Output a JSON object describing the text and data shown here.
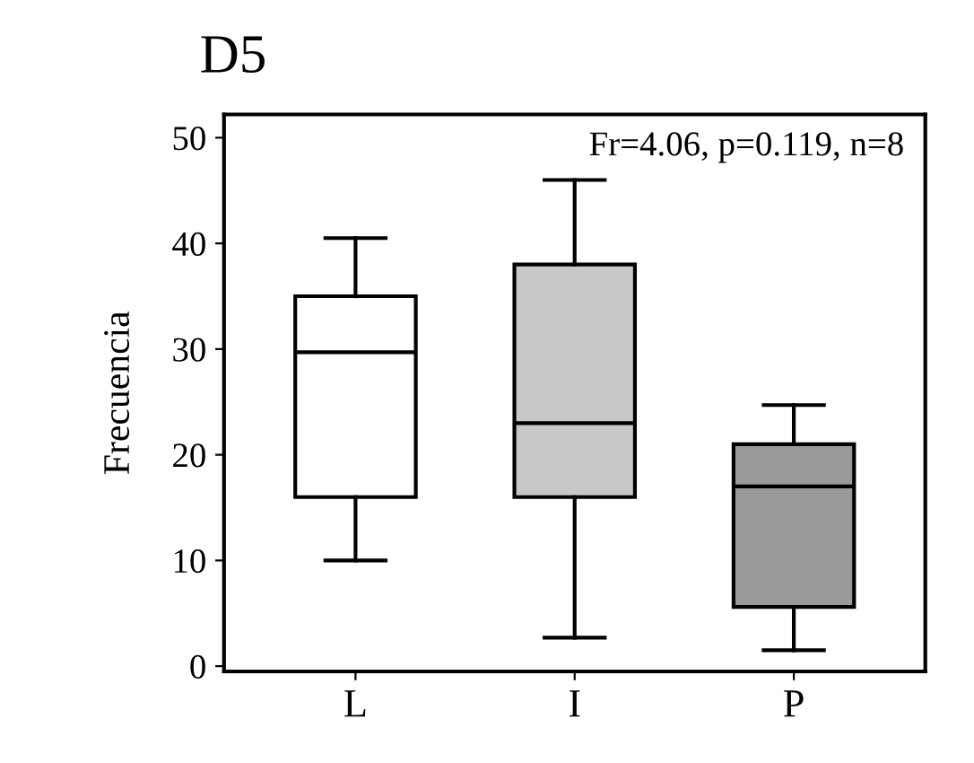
{
  "chart_data": {
    "type": "box",
    "title": "D5",
    "ylabel": "Frecuencia",
    "categories": [
      "L",
      "I",
      "P"
    ],
    "boxes": [
      {
        "low": 10,
        "q1": 16,
        "median": 29.7,
        "q3": 35,
        "high": 40.5
      },
      {
        "low": 2.7,
        "q1": 16,
        "median": 23,
        "q3": 38,
        "high": 46
      },
      {
        "low": 1.5,
        "q1": 5.6,
        "median": 17,
        "q3": 21,
        "high": 24.7
      }
    ],
    "colors": [
      "#ffffff",
      "#c8c8c8",
      "#9a9a9a"
    ],
    "ylim": [
      -0.5,
      52.2
    ],
    "yticks": [
      0,
      10,
      20,
      30,
      40,
      50
    ],
    "annotations": [
      "Fr=4.06, p=0.119, n=8"
    ],
    "grid": false
  }
}
